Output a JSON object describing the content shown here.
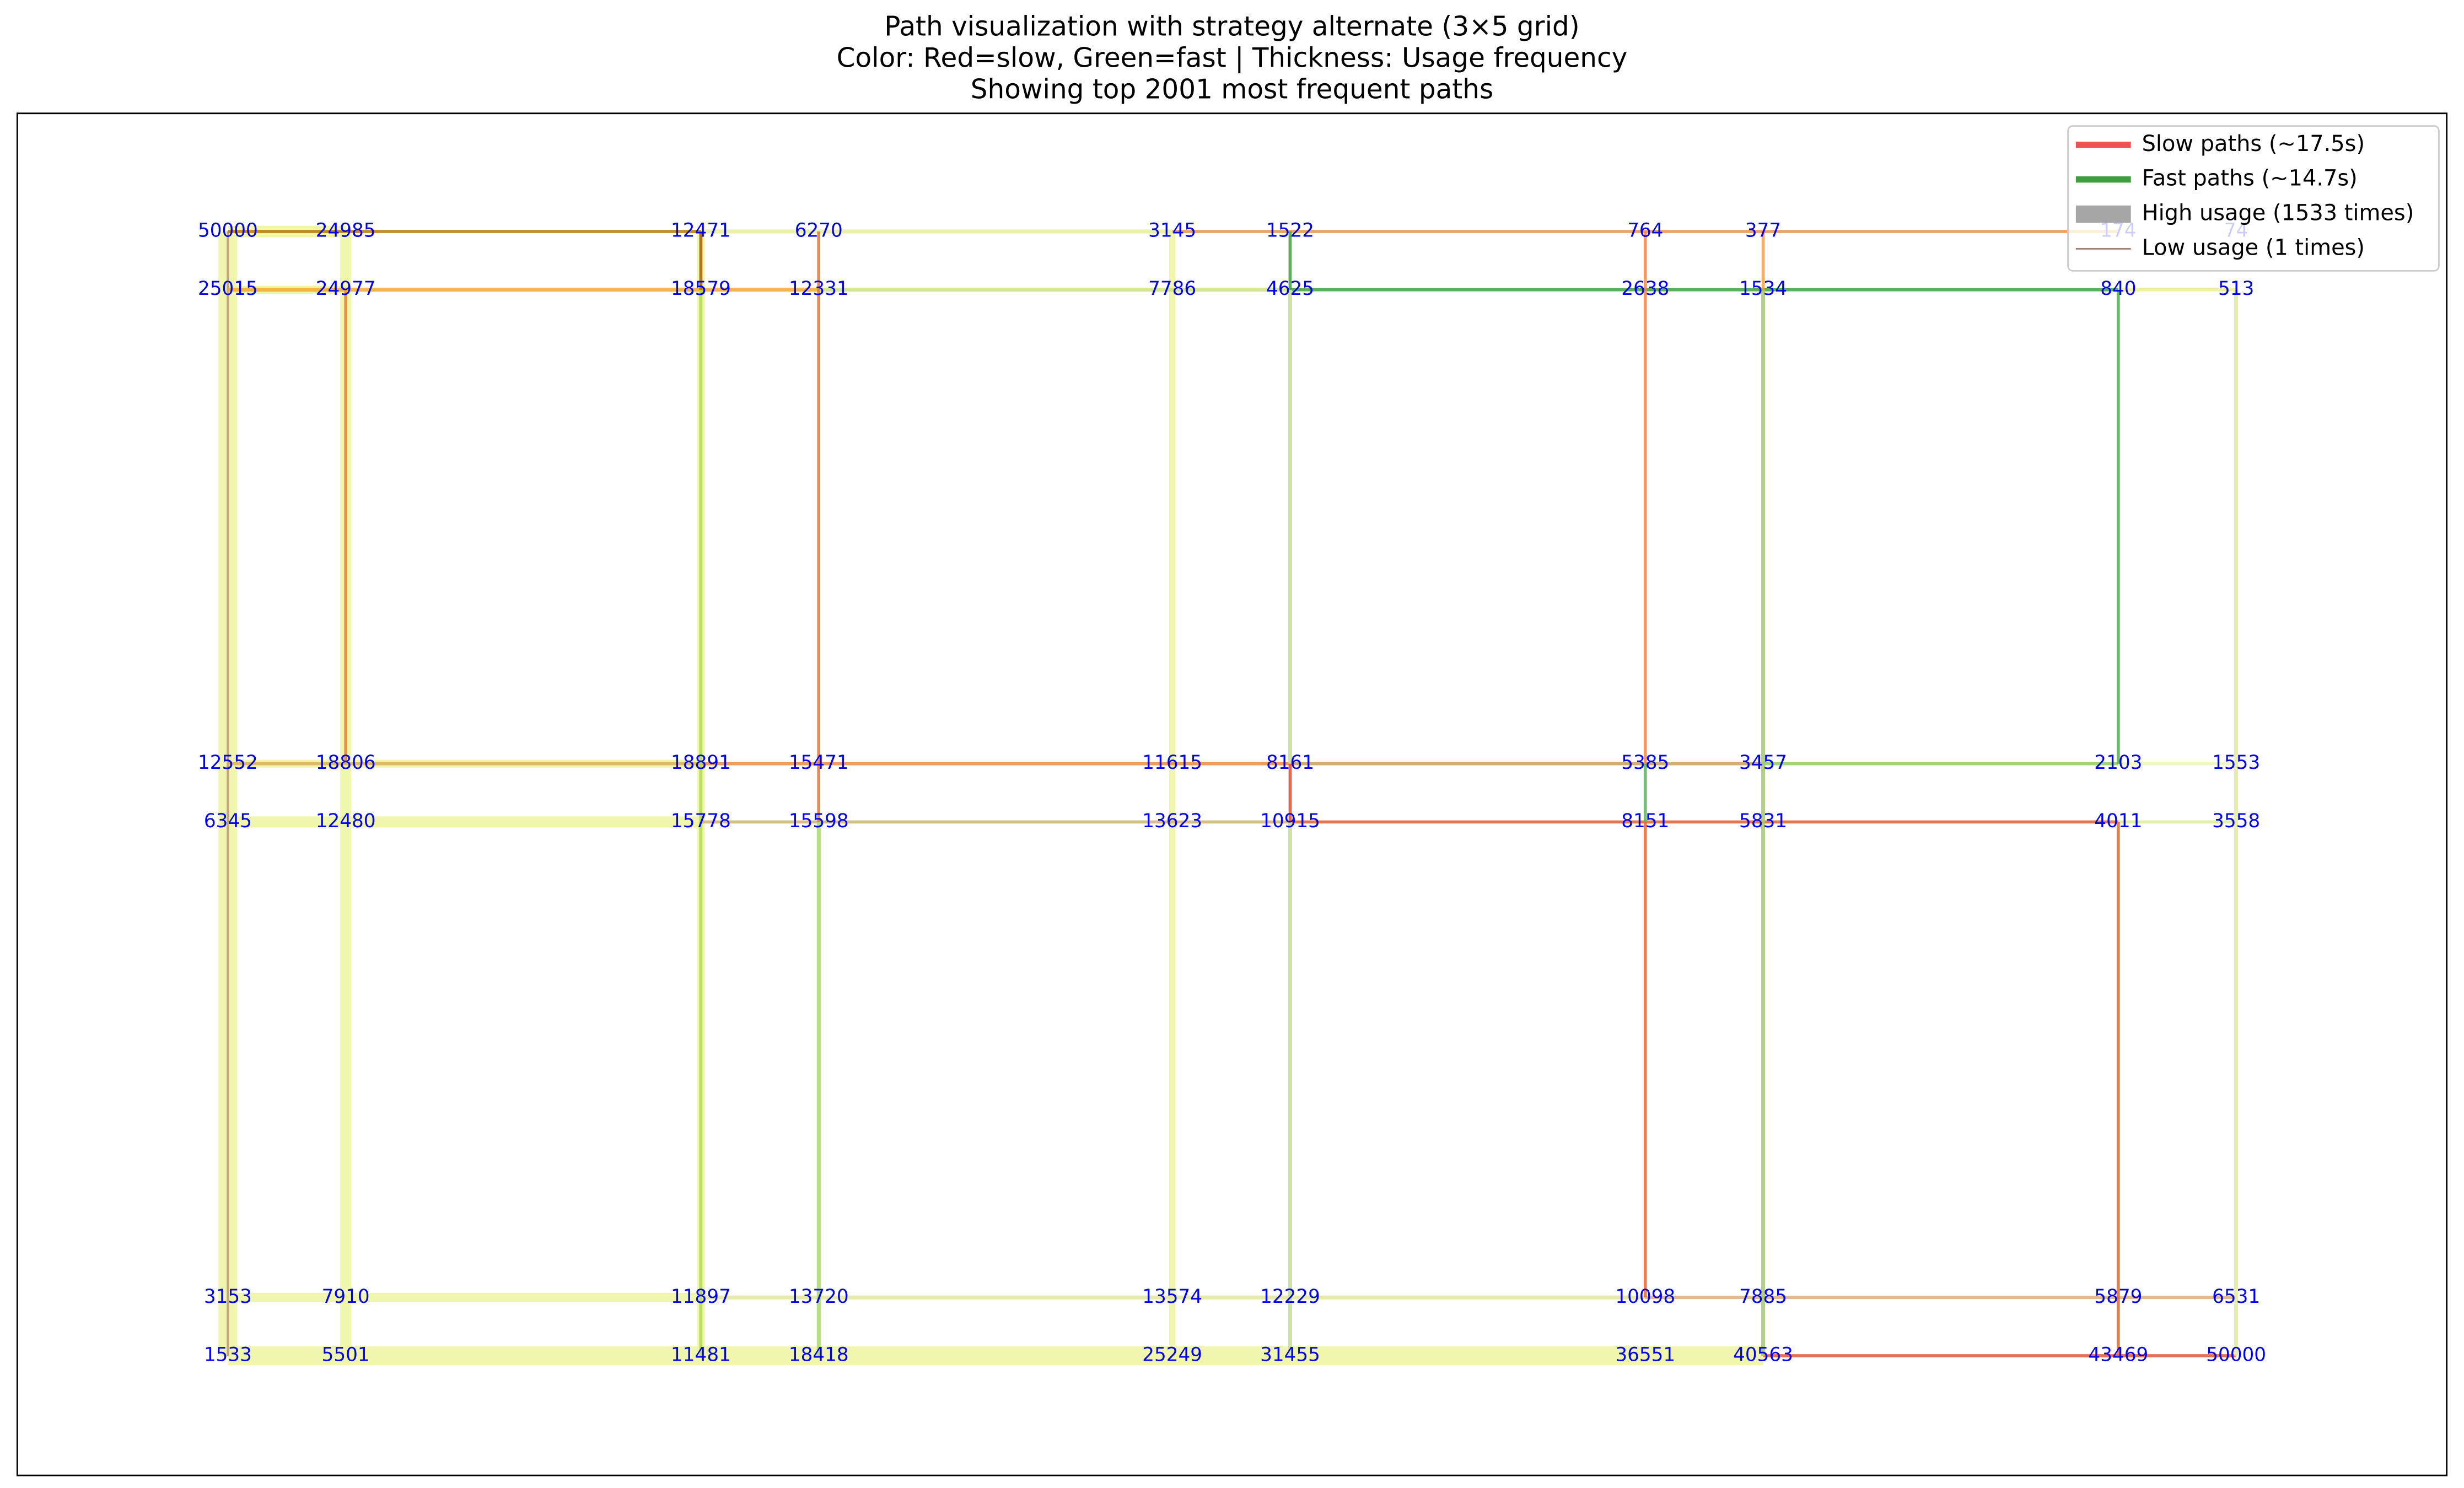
{
  "header": {
    "title": [
      "Path visualization with strategy alternate (3×5 grid)",
      "Color: Red=slow, Green=fast | Thickness: Usage frequency",
      "Showing top 2001 most frequent paths"
    ]
  },
  "legend": [
    "Slow paths (~17.5s)",
    "Fast paths (~14.7s)",
    "High usage (1533 times)",
    "Low usage (1 times)"
  ],
  "nodes": {
    "rows": [
      [
        "50000",
        "24985",
        "12471",
        "6270",
        "3145",
        "1522",
        "764",
        "377",
        "174",
        "74"
      ],
      [
        "25015",
        "24977",
        "18579",
        "12331",
        "7786",
        "4625",
        "2638",
        "1534",
        "840",
        "513"
      ],
      [
        "12552",
        "18806",
        "18891",
        "15471",
        "11615",
        "8161",
        "5385",
        "3457",
        "2103",
        "1553"
      ],
      [
        "6345",
        "12480",
        "15778",
        "15598",
        "13623",
        "10915",
        "8151",
        "5831",
        "4011",
        "3558"
      ],
      [
        "3153",
        "7910",
        "11897",
        "13720",
        "13574",
        "12229",
        "10098",
        "7885",
        "5879",
        "6531"
      ],
      [
        "1533",
        "5501",
        "11481",
        "18418",
        "25249",
        "31455",
        "36551",
        "40563",
        "43469",
        "50000"
      ]
    ]
  }
}
